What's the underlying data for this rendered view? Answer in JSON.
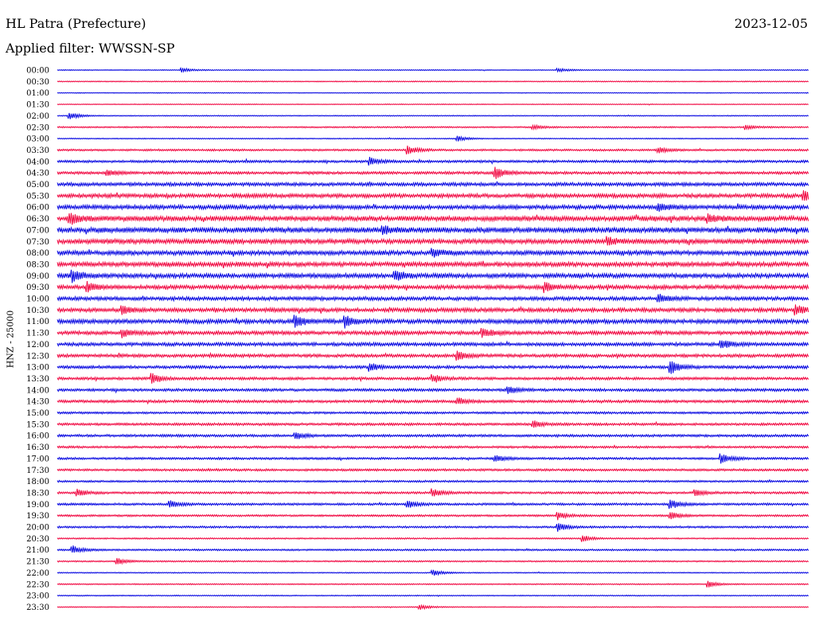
{
  "header": {
    "station": "HL Patra (Prefecture)",
    "date": "2023-12-05",
    "filter_text": "Applied filter: WWSSN-SP"
  },
  "colors": {
    "even_trace": "#0000e0",
    "odd_trace": "#f0003c",
    "text": "#000000",
    "background": "#ffffff"
  },
  "chart_data": {
    "type": "line",
    "title": "HL Patra (Prefecture)",
    "ylabel": "HNZ - 25000",
    "xlabel": "",
    "grid": false,
    "legend": "none",
    "row_labels": [
      "00:00",
      "00:30",
      "01:00",
      "01:30",
      "02:00",
      "02:30",
      "03:00",
      "03:30",
      "04:00",
      "04:30",
      "05:00",
      "05:30",
      "06:00",
      "06:30",
      "07:00",
      "07:30",
      "08:00",
      "08:30",
      "09:00",
      "09:30",
      "10:00",
      "10:30",
      "11:00",
      "11:30",
      "12:00",
      "12:30",
      "13:00",
      "13:30",
      "14:00",
      "14:30",
      "15:00",
      "15:30",
      "16:00",
      "16:30",
      "17:00",
      "17:30",
      "18:00",
      "18:30",
      "19:00",
      "19:30",
      "20:00",
      "20:30",
      "21:00",
      "21:30",
      "22:00",
      "22:30",
      "23:00",
      "23:30"
    ],
    "relative_noise_level": [
      0.1,
      0.12,
      0.08,
      0.08,
      0.1,
      0.2,
      0.12,
      0.3,
      0.4,
      0.45,
      0.6,
      0.7,
      0.75,
      0.9,
      0.95,
      0.85,
      0.8,
      0.8,
      0.8,
      0.7,
      0.65,
      0.7,
      0.75,
      0.65,
      0.6,
      0.55,
      0.5,
      0.45,
      0.45,
      0.45,
      0.35,
      0.4,
      0.4,
      0.35,
      0.35,
      0.35,
      0.3,
      0.35,
      0.35,
      0.3,
      0.3,
      0.2,
      0.25,
      0.2,
      0.12,
      0.15,
      0.12,
      0.1
    ],
    "events": [
      {
        "row": "00:00",
        "minute": 5,
        "amp": 0.35
      },
      {
        "row": "00:00",
        "minute": 20,
        "amp": 0.3
      },
      {
        "row": "02:00",
        "minute": 0.5,
        "amp": 0.6
      },
      {
        "row": "02:30",
        "minute": 19,
        "amp": 0.4
      },
      {
        "row": "02:30",
        "minute": 27.5,
        "amp": 0.35
      },
      {
        "row": "03:00",
        "minute": 16,
        "amp": 0.4
      },
      {
        "row": "03:30",
        "minute": 14,
        "amp": 0.7
      },
      {
        "row": "03:30",
        "minute": 24,
        "amp": 0.5
      },
      {
        "row": "04:00",
        "minute": 12.5,
        "amp": 0.6
      },
      {
        "row": "04:30",
        "minute": 17.5,
        "amp": 1.0
      },
      {
        "row": "04:30",
        "minute": 2,
        "amp": 0.5
      },
      {
        "row": "05:30",
        "minute": 29.8,
        "amp": 0.8
      },
      {
        "row": "06:00",
        "minute": 24,
        "amp": 0.6
      },
      {
        "row": "06:30",
        "minute": 0.5,
        "amp": 0.8
      },
      {
        "row": "06:30",
        "minute": 26,
        "amp": 0.6
      },
      {
        "row": "07:00",
        "minute": 13,
        "amp": 0.7
      },
      {
        "row": "07:30",
        "minute": 22,
        "amp": 0.6
      },
      {
        "row": "08:00",
        "minute": 15,
        "amp": 0.6
      },
      {
        "row": "09:00",
        "minute": 0.6,
        "amp": 0.9
      },
      {
        "row": "09:00",
        "minute": 13.5,
        "amp": 0.8
      },
      {
        "row": "09:30",
        "minute": 1.2,
        "amp": 0.8
      },
      {
        "row": "09:30",
        "minute": 19.5,
        "amp": 0.7
      },
      {
        "row": "10:00",
        "minute": 24,
        "amp": 0.6
      },
      {
        "row": "10:30",
        "minute": 2.6,
        "amp": 0.7
      },
      {
        "row": "10:30",
        "minute": 29.5,
        "amp": 0.8
      },
      {
        "row": "11:00",
        "minute": 9.5,
        "amp": 0.9
      },
      {
        "row": "11:00",
        "minute": 11.5,
        "amp": 0.9
      },
      {
        "row": "11:30",
        "minute": 17,
        "amp": 0.7
      },
      {
        "row": "11:30",
        "minute": 2.6,
        "amp": 0.6
      },
      {
        "row": "12:00",
        "minute": 26.5,
        "amp": 0.8
      },
      {
        "row": "12:30",
        "minute": 16,
        "amp": 0.7
      },
      {
        "row": "13:00",
        "minute": 24.5,
        "amp": 1.0
      },
      {
        "row": "13:00",
        "minute": 12.5,
        "amp": 0.6
      },
      {
        "row": "13:30",
        "minute": 3.8,
        "amp": 0.8
      },
      {
        "row": "13:30",
        "minute": 15,
        "amp": 0.7
      },
      {
        "row": "14:00",
        "minute": 18,
        "amp": 0.6
      },
      {
        "row": "14:30",
        "minute": 16,
        "amp": 0.5
      },
      {
        "row": "15:30",
        "minute": 19,
        "amp": 0.6
      },
      {
        "row": "16:00",
        "minute": 9.5,
        "amp": 0.6
      },
      {
        "row": "17:00",
        "minute": 26.5,
        "amp": 0.8
      },
      {
        "row": "17:00",
        "minute": 17.5,
        "amp": 0.5
      },
      {
        "row": "18:30",
        "minute": 0.8,
        "amp": 0.6
      },
      {
        "row": "18:30",
        "minute": 15,
        "amp": 0.6
      },
      {
        "row": "18:30",
        "minute": 25.5,
        "amp": 0.5
      },
      {
        "row": "19:00",
        "minute": 4.5,
        "amp": 0.6
      },
      {
        "row": "19:00",
        "minute": 14,
        "amp": 0.6
      },
      {
        "row": "19:00",
        "minute": 24.5,
        "amp": 0.7
      },
      {
        "row": "19:30",
        "minute": 20,
        "amp": 0.6
      },
      {
        "row": "19:30",
        "minute": 24.5,
        "amp": 0.6
      },
      {
        "row": "20:00",
        "minute": 20,
        "amp": 0.7
      },
      {
        "row": "20:30",
        "minute": 21,
        "amp": 0.5
      },
      {
        "row": "21:00",
        "minute": 0.6,
        "amp": 0.7
      },
      {
        "row": "21:30",
        "minute": 2.4,
        "amp": 0.5
      },
      {
        "row": "22:00",
        "minute": 15,
        "amp": 0.5
      },
      {
        "row": "22:30",
        "minute": 26,
        "amp": 0.5
      },
      {
        "row": "23:30",
        "minute": 14.5,
        "amp": 0.4
      }
    ]
  }
}
